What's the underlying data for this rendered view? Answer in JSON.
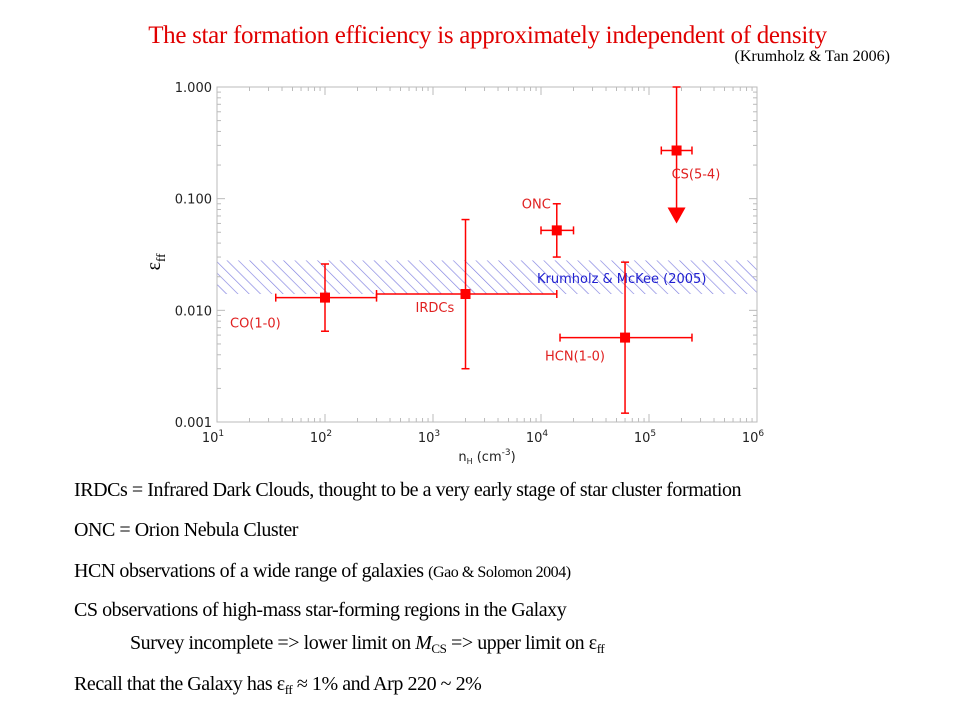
{
  "slide": {
    "title": "The star formation efficiency is approximately independent of density",
    "citation": "(Krumholz & Tan 2006)",
    "lines": [
      {
        "text": "IRDCs = Infrared Dark Clouds, thought to be a very early stage of star cluster formation"
      },
      {
        "text": "ONC = Orion Nebula Cluster"
      },
      {
        "text": "HCN observations of a wide range of galaxies ",
        "ref": "(Gao & Solomon 2004)"
      },
      {
        "text": "CS observations of high-mass star-forming regions in the Galaxy"
      },
      {
        "a": "Survey incomplete => lower limit on ",
        "m": "M",
        "msub": "CS",
        "b": " => upper limit on ε",
        "esub": "ff"
      },
      {
        "a": "Recall that the Galaxy has ε",
        "esub": "ff",
        "b": " ≈ 1% and Arp 220 ~ 2%"
      }
    ]
  },
  "chart_data": {
    "type": "scatter",
    "xscale": "log",
    "yscale": "log",
    "xlim": [
      10,
      1000000
    ],
    "ylim": [
      0.001,
      1.0
    ],
    "xlabel": "n",
    "xlabel_sub": "H",
    "xlabel_unit": "(cm",
    "xlabel_sup": "-3",
    "xlabel_close": ")",
    "ylabel": "ε",
    "ylabel_sub": "ff",
    "xticks": [
      {
        "b": "10",
        "e": "1"
      },
      {
        "b": "10",
        "e": "2"
      },
      {
        "b": "10",
        "e": "3"
      },
      {
        "b": "10",
        "e": "4"
      },
      {
        "b": "10",
        "e": "5"
      },
      {
        "b": "10",
        "e": "6"
      }
    ],
    "yticks": [
      "0.001",
      "0.010",
      "0.100",
      "1.000"
    ],
    "grid": false,
    "marker_color": "#ff0000",
    "band": {
      "label": "Krumholz & McKee (2005)",
      "ymin": 0.014,
      "ymax": 0.028,
      "color": "#8080e0",
      "label_color": "#2020d0"
    },
    "points": [
      {
        "label": "CO(1-0)",
        "x": 100,
        "y": 0.013,
        "xmin": 35,
        "xmax": 300,
        "ymin": 0.0065,
        "ymax": 0.026
      },
      {
        "label": "IRDCs",
        "x": 2000,
        "y": 0.014,
        "xmin": 300,
        "xmax": 14000,
        "ymin": 0.003,
        "ymax": 0.065
      },
      {
        "label": "ONC",
        "x": 14000,
        "y": 0.052,
        "xmin": 10000,
        "xmax": 20000,
        "ymin": 0.03,
        "ymax": 0.09
      },
      {
        "label": "HCN(1-0)",
        "x": 60000,
        "y": 0.0057,
        "xmin": 15000,
        "xmax": 250000,
        "ymin": 0.0012,
        "ymax": 0.027
      },
      {
        "label": "CS(5-4)",
        "x": 180000,
        "y": 0.27,
        "xmin": 130000,
        "xmax": 250000,
        "ymin": 0.06,
        "ymax": 1.0,
        "upper_limit": true
      }
    ]
  }
}
